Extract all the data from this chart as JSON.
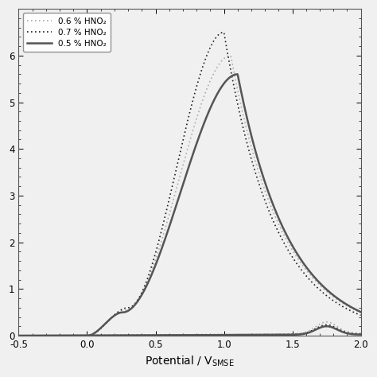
{
  "title": "",
  "xlabel": "Potential / V",
  "ylabel": "",
  "xlim": [
    -0.5,
    2.0
  ],
  "ylim": [
    0,
    7.0
  ],
  "ytick_vals": [
    0,
    1,
    2,
    3,
    4,
    5,
    6
  ],
  "ytick_labels": [
    "0",
    "1",
    "2",
    "3",
    "4",
    "5",
    "6"
  ],
  "xtick_vals": [
    -0.5,
    0.0,
    0.5,
    1.0,
    1.5,
    2.0
  ],
  "xtick_labels": [
    "-0.5",
    "0.0",
    "0.5",
    "1.0",
    "1.5",
    "2.0"
  ],
  "legend_labels": [
    "0.6 % HNO₂",
    "0.7 % HNO₂",
    "0.5 % HNO₂"
  ],
  "background_color": "#f0f0f0",
  "ax_facecolor": "#f0f0f0",
  "figsize": [
    4.74,
    4.74
  ],
  "dpi": 100
}
